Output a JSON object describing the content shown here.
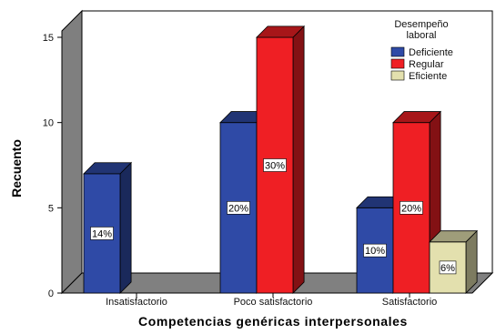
{
  "chart_data": {
    "type": "bar",
    "style": "3d-clustered",
    "categories": [
      "Insatisfactorio",
      "Poco satisfactorio",
      "Satisfactorio"
    ],
    "series": [
      {
        "name": "Deficiente",
        "color": "#2f4aa6",
        "values": [
          7,
          10,
          5
        ],
        "labels": [
          "14%",
          "20%",
          "10%"
        ]
      },
      {
        "name": "Regular",
        "color": "#ef1f24",
        "values": [
          0,
          15,
          10
        ],
        "labels": [
          "",
          "30%",
          "20%"
        ]
      },
      {
        "name": "Eficiente",
        "color": "#e3e0ae",
        "values": [
          0,
          0,
          3
        ],
        "labels": [
          "",
          "",
          "6%"
        ]
      }
    ],
    "xlabel": "Competencias genéricas interpersonales",
    "ylabel": "Recuento",
    "ylim": [
      0,
      15
    ],
    "yticks": [
      0,
      5,
      10,
      15
    ],
    "legend": {
      "title_line1": "Desempeño",
      "title_line2": "laboral",
      "placement": "top-right"
    },
    "grid": false
  }
}
